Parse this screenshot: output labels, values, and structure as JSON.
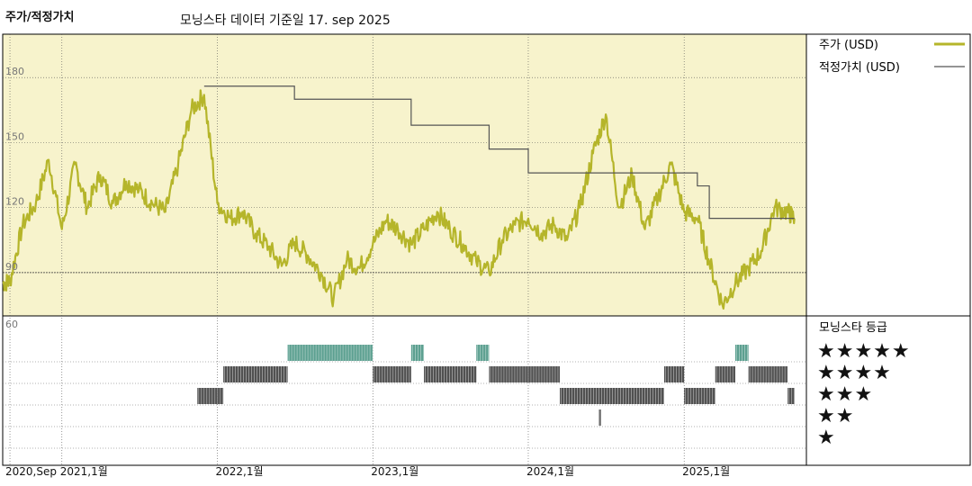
{
  "header": {
    "title": "주가/적정가치",
    "subtitle": "모닝스타 데이터 기준일 17. sep 2025"
  },
  "legend": {
    "price_label": "주가 (USD)",
    "fair_label": "적정가치 (USD)",
    "rating_title": "모닝스타 등급",
    "price_color": "#b5b52a",
    "fair_color": "#555555",
    "rating_colors": {
      "5": "#3f8f7c",
      "4": "#333333",
      "3": "#333333",
      "2": "#333333",
      "1": "#333333"
    }
  },
  "star_rows": [
    "★★★★★",
    "★★★★",
    "★★★",
    "★★",
    "★"
  ],
  "chart_data": {
    "type": "line",
    "title": "주가/적정가치",
    "subtitle": "모닝스타 데이터 기준일 17. sep 2025",
    "price_axis": {
      "ylim": [
        70,
        200
      ],
      "ticks": [
        90,
        120,
        150,
        180
      ],
      "tick_labels": [
        "90",
        "120",
        "150",
        "180"
      ],
      "grid": true
    },
    "rating_axis": {
      "label": "60"
    },
    "x_axis": {
      "range": [
        "2020-08-15",
        "2025-10-15"
      ],
      "ticks": [
        "2020-09-01",
        "2021-01-01",
        "2022-01-01",
        "2023-01-01",
        "2024-01-01",
        "2025-01-01"
      ],
      "tick_labels": [
        "2020,Sep",
        "2021,1월",
        "2022,1월",
        "2023,1월",
        "2024,1월",
        "2025,1월"
      ]
    },
    "series": [
      {
        "name": "주가 (USD)",
        "points": [
          [
            "2020-08-15",
            85
          ],
          [
            "2020-09-01",
            86
          ],
          [
            "2020-10-01",
            112
          ],
          [
            "2020-11-01",
            122
          ],
          [
            "2020-12-01",
            142
          ],
          [
            "2021-01-01",
            110
          ],
          [
            "2021-02-01",
            140
          ],
          [
            "2021-03-01",
            120
          ],
          [
            "2021-04-01",
            135
          ],
          [
            "2021-05-01",
            122
          ],
          [
            "2021-06-01",
            132
          ],
          [
            "2021-07-01",
            128
          ],
          [
            "2021-08-01",
            122
          ],
          [
            "2021-09-01",
            118
          ],
          [
            "2021-10-01",
            140
          ],
          [
            "2021-11-01",
            165
          ],
          [
            "2021-12-01",
            172
          ],
          [
            "2022-01-01",
            122
          ],
          [
            "2022-02-01",
            115
          ],
          [
            "2022-03-01",
            118
          ],
          [
            "2022-04-01",
            108
          ],
          [
            "2022-05-01",
            102
          ],
          [
            "2022-06-01",
            93
          ],
          [
            "2022-07-01",
            104
          ],
          [
            "2022-08-01",
            98
          ],
          [
            "2022-09-01",
            90
          ],
          [
            "2022-10-01",
            78
          ],
          [
            "2022-11-01",
            96
          ],
          [
            "2022-12-01",
            92
          ],
          [
            "2023-01-01",
            103
          ],
          [
            "2023-02-01",
            114
          ],
          [
            "2023-03-01",
            110
          ],
          [
            "2023-04-01",
            103
          ],
          [
            "2023-05-01",
            110
          ],
          [
            "2023-06-01",
            118
          ],
          [
            "2023-07-01",
            110
          ],
          [
            "2023-08-01",
            103
          ],
          [
            "2023-09-01",
            95
          ],
          [
            "2023-10-01",
            90
          ],
          [
            "2023-11-01",
            105
          ],
          [
            "2023-12-01",
            112
          ],
          [
            "2024-01-01",
            115
          ],
          [
            "2024-02-01",
            108
          ],
          [
            "2024-03-01",
            112
          ],
          [
            "2024-04-01",
            105
          ],
          [
            "2024-05-01",
            120
          ],
          [
            "2024-06-01",
            145
          ],
          [
            "2024-07-01",
            163
          ],
          [
            "2024-08-01",
            120
          ],
          [
            "2024-09-01",
            135
          ],
          [
            "2024-10-01",
            110
          ],
          [
            "2024-11-01",
            125
          ],
          [
            "2024-12-01",
            140
          ],
          [
            "2025-01-01",
            118
          ],
          [
            "2025-02-01",
            115
          ],
          [
            "2025-03-01",
            95
          ],
          [
            "2025-04-01",
            75
          ],
          [
            "2025-05-01",
            85
          ],
          [
            "2025-06-01",
            92
          ],
          [
            "2025-07-01",
            100
          ],
          [
            "2025-08-01",
            120
          ],
          [
            "2025-09-01",
            118
          ],
          [
            "2025-09-17",
            115
          ]
        ]
      },
      {
        "name": "적정가치 (USD)",
        "step_points": [
          [
            "2021-12-01",
            176
          ],
          [
            "2022-07-01",
            170
          ],
          [
            "2023-04-01",
            158
          ],
          [
            "2023-10-01",
            147
          ],
          [
            "2024-01-01",
            136
          ],
          [
            "2024-10-01",
            136
          ],
          [
            "2025-02-01",
            130
          ],
          [
            "2025-03-01",
            115
          ],
          [
            "2025-09-17",
            115
          ]
        ]
      }
    ],
    "ratings": [
      {
        "stars": 3,
        "start": "2021-11-15",
        "end": "2022-01-15"
      },
      {
        "stars": 4,
        "start": "2022-01-15",
        "end": "2022-06-15"
      },
      {
        "stars": 5,
        "start": "2022-06-15",
        "end": "2023-01-01"
      },
      {
        "stars": 4,
        "start": "2023-01-01",
        "end": "2023-04-01"
      },
      {
        "stars": 5,
        "start": "2023-04-01",
        "end": "2023-05-01"
      },
      {
        "stars": 4,
        "start": "2023-05-01",
        "end": "2023-09-01"
      },
      {
        "stars": 5,
        "start": "2023-09-01",
        "end": "2023-10-01"
      },
      {
        "stars": 4,
        "start": "2023-10-01",
        "end": "2024-03-15"
      },
      {
        "stars": 3,
        "start": "2024-03-15",
        "end": "2024-11-15"
      },
      {
        "stars": 2,
        "start": "2024-06-15",
        "end": "2024-06-20"
      },
      {
        "stars": 4,
        "start": "2024-11-15",
        "end": "2025-01-01"
      },
      {
        "stars": 3,
        "start": "2025-01-01",
        "end": "2025-03-15"
      },
      {
        "stars": 4,
        "start": "2025-03-15",
        "end": "2025-05-01"
      },
      {
        "stars": 5,
        "start": "2025-05-01",
        "end": "2025-06-01"
      },
      {
        "stars": 4,
        "start": "2025-06-01",
        "end": "2025-09-01"
      },
      {
        "stars": 3,
        "start": "2025-09-01",
        "end": "2025-09-17"
      }
    ]
  }
}
